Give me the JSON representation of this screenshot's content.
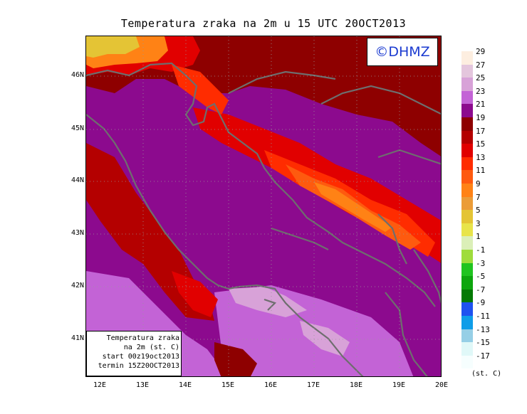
{
  "title": "Temperatura zraka na 2m u 15 UTC 20OCT2013",
  "logo_text": "©DHMZ",
  "info_box": {
    "line1": "Temperatura zraka",
    "line2": "na 2m (st. C)",
    "line3": "start 00z19oct2013",
    "line4": "termin 15Z20OCT2013"
  },
  "lat_labels": [
    "46N",
    "45N",
    "44N",
    "43N",
    "42N",
    "41N"
  ],
  "lon_labels": [
    "12E",
    "13E",
    "14E",
    "15E",
    "16E",
    "17E",
    "18E",
    "19E",
    "20E"
  ],
  "legend": {
    "unit": "(st. C)",
    "entries": [
      {
        "label": "29",
        "color": "#fdeee0"
      },
      {
        "label": "27",
        "color": "#e4c6dd"
      },
      {
        "label": "25",
        "color": "#d8a2d8"
      },
      {
        "label": "23",
        "color": "#c363d6"
      },
      {
        "label": "21",
        "color": "#8c0a8e"
      },
      {
        "label": "19",
        "color": "#8e0000"
      },
      {
        "label": "17",
        "color": "#b40000"
      },
      {
        "label": "15",
        "color": "#e10000"
      },
      {
        "label": "13",
        "color": "#ff2c00"
      },
      {
        "label": "11",
        "color": "#fe5a0f"
      },
      {
        "label": "9",
        "color": "#ff8215"
      },
      {
        "label": "7",
        "color": "#eb9c38"
      },
      {
        "label": "5",
        "color": "#e4c435"
      },
      {
        "label": "3",
        "color": "#e8e44a"
      },
      {
        "label": "1",
        "color": "#dbefb8"
      },
      {
        "label": "-1",
        "color": "#9fdc3c"
      },
      {
        "label": "-3",
        "color": "#20c420"
      },
      {
        "label": "-5",
        "color": "#0ea60e"
      },
      {
        "label": "-7",
        "color": "#047a04"
      },
      {
        "label": "-9",
        "color": "#1f52f0"
      },
      {
        "label": "-11",
        "color": "#0f9de8"
      },
      {
        "label": "-13",
        "color": "#96cfe6"
      },
      {
        "label": "-15",
        "color": "#e0f8f8"
      },
      {
        "label": "-17",
        "color": "#f6fefe"
      }
    ]
  }
}
